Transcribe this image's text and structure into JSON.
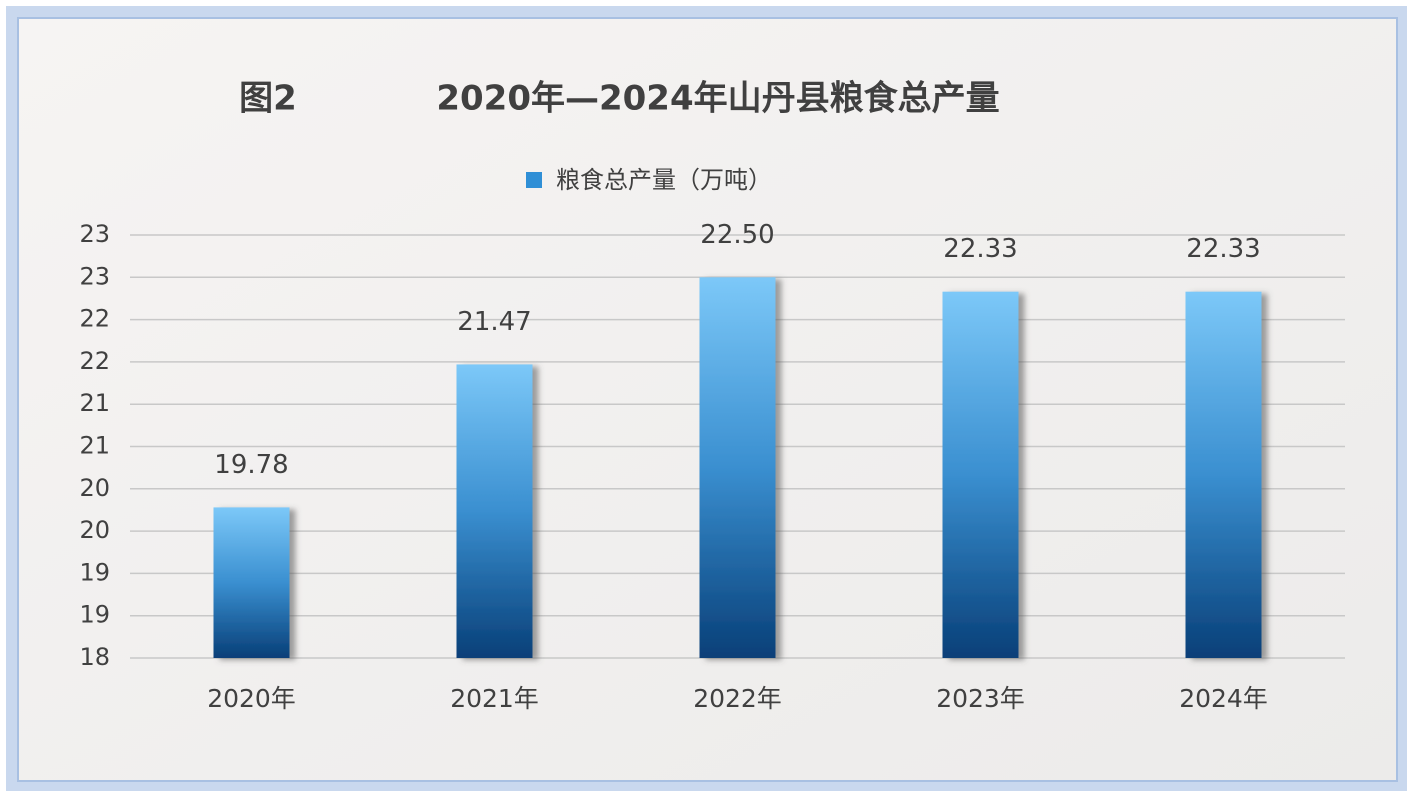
{
  "chart_data": {
    "type": "bar",
    "figure_label": "图2",
    "title": "2020年—2024年山丹县粮食总产量",
    "categories": [
      "2020年",
      "2021年",
      "2022年",
      "2023年",
      "2024年"
    ],
    "series": [
      {
        "name": "粮食总产量（万吨）",
        "color": "#2f8fd6",
        "values": [
          19.78,
          21.47,
          22.5,
          22.33,
          22.33
        ],
        "value_labels": [
          "19.78",
          "21.47",
          "22.50",
          "22.33",
          "22.33"
        ]
      }
    ],
    "ylim": [
      18,
      23
    ],
    "yticks": [
      18,
      {
        "value": 18.5,
        "label": "19"
      },
      19,
      {
        "value": 19.5,
        "label": "20"
      },
      20,
      {
        "value": 20.5,
        "label": "21"
      },
      21,
      {
        "value": 21.5,
        "label": "22"
      },
      22,
      {
        "value": 22.5,
        "label": "23"
      },
      23
    ],
    "grid": true,
    "legend": "top"
  }
}
